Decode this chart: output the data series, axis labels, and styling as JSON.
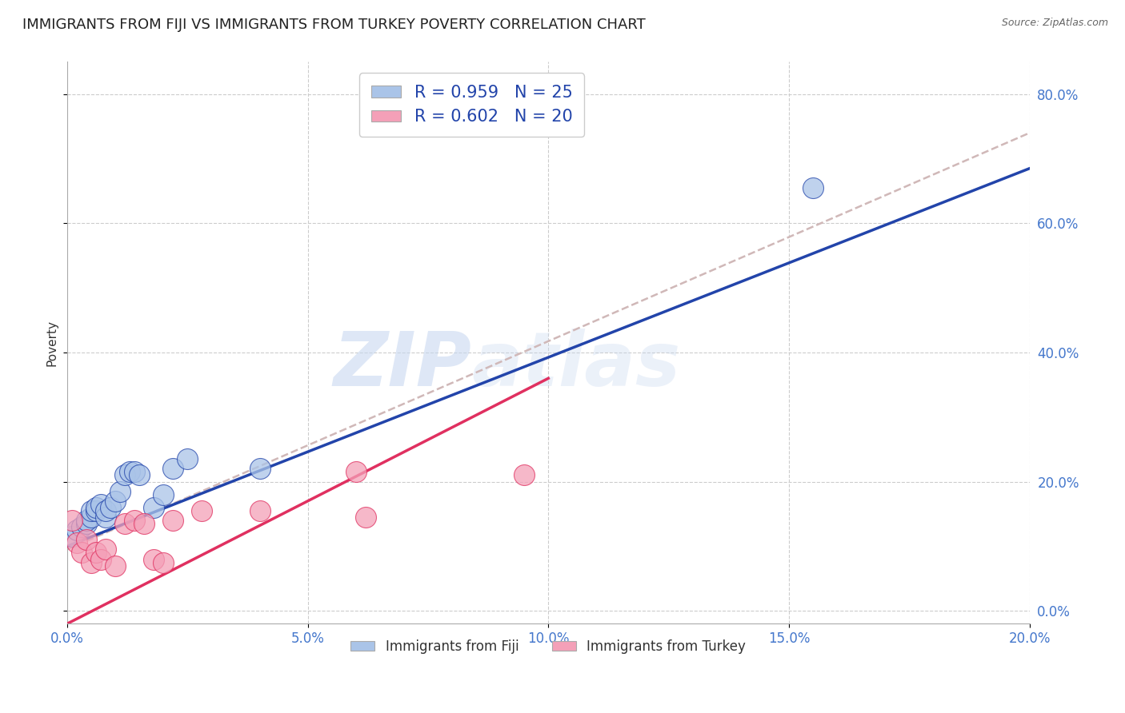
{
  "title": "IMMIGRANTS FROM FIJI VS IMMIGRANTS FROM TURKEY POVERTY CORRELATION CHART",
  "source": "Source: ZipAtlas.com",
  "xlabel": "",
  "ylabel": "Poverty",
  "xlim": [
    0.0,
    0.2
  ],
  "ylim": [
    -0.02,
    0.85
  ],
  "x_ticks": [
    0.0,
    0.05,
    0.1,
    0.15,
    0.2
  ],
  "y_ticks": [
    0.0,
    0.2,
    0.4,
    0.6,
    0.8
  ],
  "fiji_R": 0.959,
  "fiji_N": 25,
  "turkey_R": 0.602,
  "turkey_N": 20,
  "fiji_color": "#aac4e8",
  "fiji_line_color": "#2244aa",
  "turkey_color": "#f4a0b8",
  "turkey_line_color": "#e03060",
  "dashed_line_color": "#d0b8b8",
  "fiji_scatter_x": [
    0.001,
    0.002,
    0.003,
    0.004,
    0.004,
    0.005,
    0.005,
    0.006,
    0.006,
    0.007,
    0.008,
    0.008,
    0.009,
    0.01,
    0.011,
    0.012,
    0.013,
    0.014,
    0.015,
    0.018,
    0.02,
    0.022,
    0.025,
    0.04,
    0.155
  ],
  "fiji_scatter_y": [
    0.115,
    0.125,
    0.13,
    0.135,
    0.14,
    0.145,
    0.155,
    0.155,
    0.16,
    0.165,
    0.145,
    0.155,
    0.16,
    0.17,
    0.185,
    0.21,
    0.215,
    0.215,
    0.21,
    0.16,
    0.18,
    0.22,
    0.235,
    0.22,
    0.655
  ],
  "turkey_scatter_x": [
    0.001,
    0.002,
    0.003,
    0.004,
    0.005,
    0.006,
    0.007,
    0.008,
    0.01,
    0.012,
    0.014,
    0.016,
    0.018,
    0.02,
    0.022,
    0.028,
    0.04,
    0.06,
    0.062,
    0.095
  ],
  "turkey_scatter_y": [
    0.14,
    0.105,
    0.09,
    0.11,
    0.075,
    0.09,
    0.08,
    0.095,
    0.07,
    0.135,
    0.14,
    0.135,
    0.08,
    0.075,
    0.14,
    0.155,
    0.155,
    0.215,
    0.145,
    0.21
  ],
  "fiji_line_x": [
    0.0,
    0.2
  ],
  "fiji_line_y": [
    0.1,
    0.685
  ],
  "turkey_line_x": [
    0.0,
    0.1
  ],
  "turkey_line_y": [
    -0.02,
    0.36
  ],
  "dashed_line_x": [
    0.0,
    0.2
  ],
  "dashed_line_y": [
    0.095,
    0.74
  ],
  "watermark_zip": "ZIP",
  "watermark_atlas": "atlas",
  "background_color": "#ffffff",
  "title_fontsize": 13,
  "axis_label_fontsize": 11,
  "tick_fontsize": 12,
  "legend_fontsize": 15
}
